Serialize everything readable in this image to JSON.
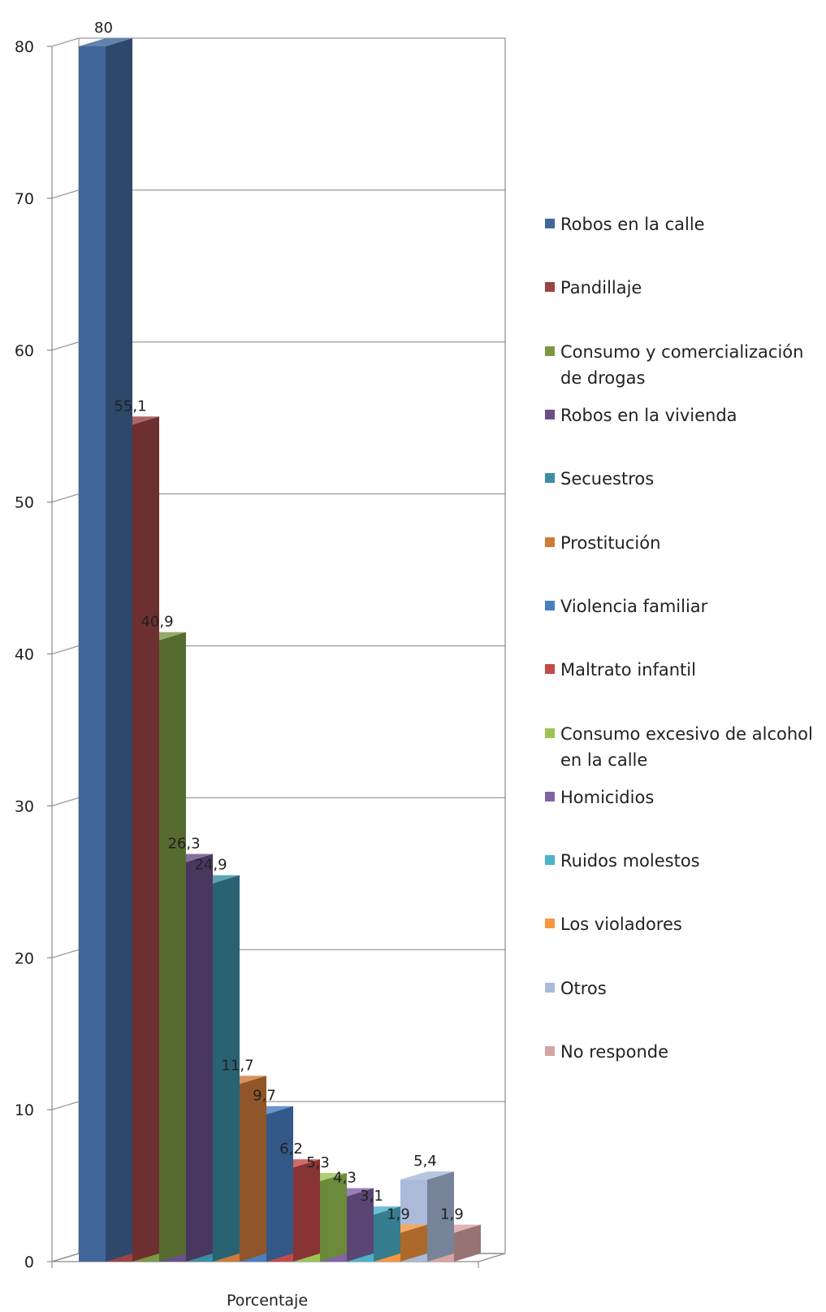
{
  "chart_data": {
    "type": "bar",
    "xlabel": "Porcentaje",
    "ylabel": "",
    "ylim": [
      0,
      80
    ],
    "yticks": [
      "0",
      "10",
      "20",
      "30",
      "40",
      "50",
      "60",
      "70",
      "80"
    ],
    "grid": true,
    "legend_position": "right",
    "series": [
      {
        "name": "Robos en la calle",
        "value": 80,
        "label": "80",
        "color": "#41679a"
      },
      {
        "name": "Pandillaje",
        "value": 55.1,
        "label": "55,1",
        "color": "#9c4343"
      },
      {
        "name": "Consumo y comercialización de drogas",
        "value": 40.9,
        "label": "40,9",
        "color": "#7b9945"
      },
      {
        "name": "Robos en la vivienda",
        "value": 26.3,
        "label": "26,3",
        "color": "#6a4f85"
      },
      {
        "name": "Secuestros",
        "value": 24.9,
        "label": "24,9",
        "color": "#3b8ea3"
      },
      {
        "name": "Prostitución",
        "value": 11.7,
        "label": "11,7",
        "color": "#cd7b3a"
      },
      {
        "name": "Violencia familiar",
        "value": 9.7,
        "label": "9,7",
        "color": "#4a7ec2"
      },
      {
        "name": "Maltrato infantil",
        "value": 6.2,
        "label": "6,2",
        "color": "#c44a4a"
      },
      {
        "name": "Consumo excesivo de alcohol en la calle",
        "value": 5.3,
        "label": "5,3",
        "color": "#9cc454"
      },
      {
        "name": "Homicidios",
        "value": 4.3,
        "label": "4,3",
        "color": "#8263a6"
      },
      {
        "name": "Ruidos molestos",
        "value": 3.1,
        "label": "3,1",
        "color": "#4bb2cc"
      },
      {
        "name": "Los violadores",
        "value": 1.9,
        "label": "1,9",
        "color": "#f7963e"
      },
      {
        "name": "Otros",
        "value": 5.4,
        "label": "5,4",
        "color": "#a9bbd9"
      },
      {
        "name": "No responde",
        "value": 1.9,
        "label": "1,9",
        "color": "#d9a4a4"
      }
    ]
  }
}
